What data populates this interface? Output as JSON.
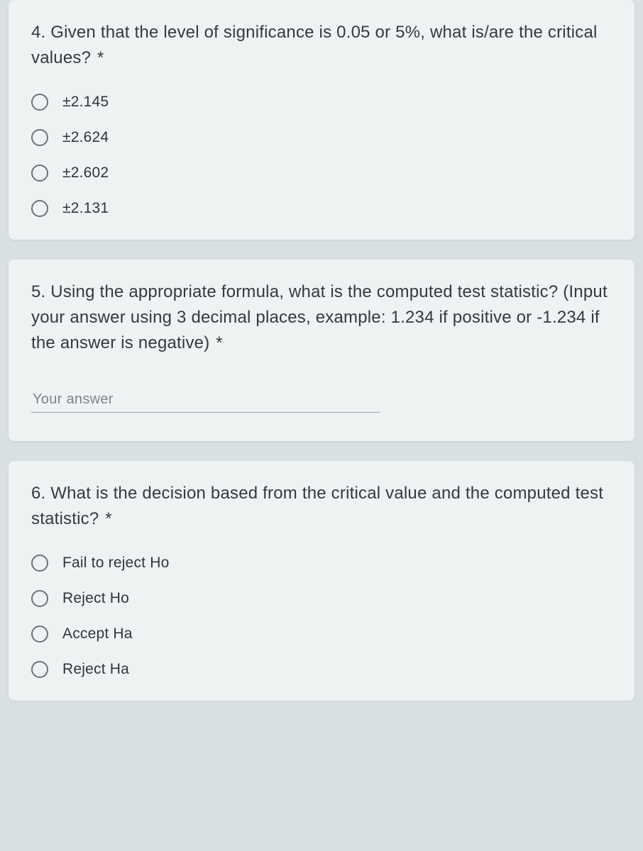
{
  "colors": {
    "page_bg": "#d8e0e3",
    "card_bg": "#eef2f3",
    "text": "#333a3e",
    "option_text": "#2f363a",
    "radio_border": "#6a7378",
    "input_border": "#9aa3a7",
    "placeholder": "#7a868c"
  },
  "typography": {
    "question_fontsize": 24,
    "option_fontsize": 21,
    "input_fontsize": 20,
    "font_family": "Arial"
  },
  "layout": {
    "card_radius": 8,
    "card_gap": 28,
    "radio_size": 24
  },
  "questions": [
    {
      "type": "radio",
      "text": "4. Given that the level of significance is 0.05 or 5%, what is/are the critical values?",
      "required_marker": "*",
      "options": [
        "±2.145",
        "±2.624",
        "±2.602",
        "±2.131"
      ]
    },
    {
      "type": "short_answer",
      "text": "5. Using the appropriate formula, what is the computed test statistic? (Input your answer using 3 decimal places, example: 1.234 if positive or -1.234 if the answer is negative)",
      "required_marker": "*",
      "placeholder": "Your answer"
    },
    {
      "type": "radio",
      "text": "6. What is the decision based from the critical value and the computed test statistic?",
      "required_marker": "*",
      "options": [
        "Fail to reject Ho",
        "Reject Ho",
        "Accept Ha",
        "Reject Ha"
      ]
    }
  ]
}
